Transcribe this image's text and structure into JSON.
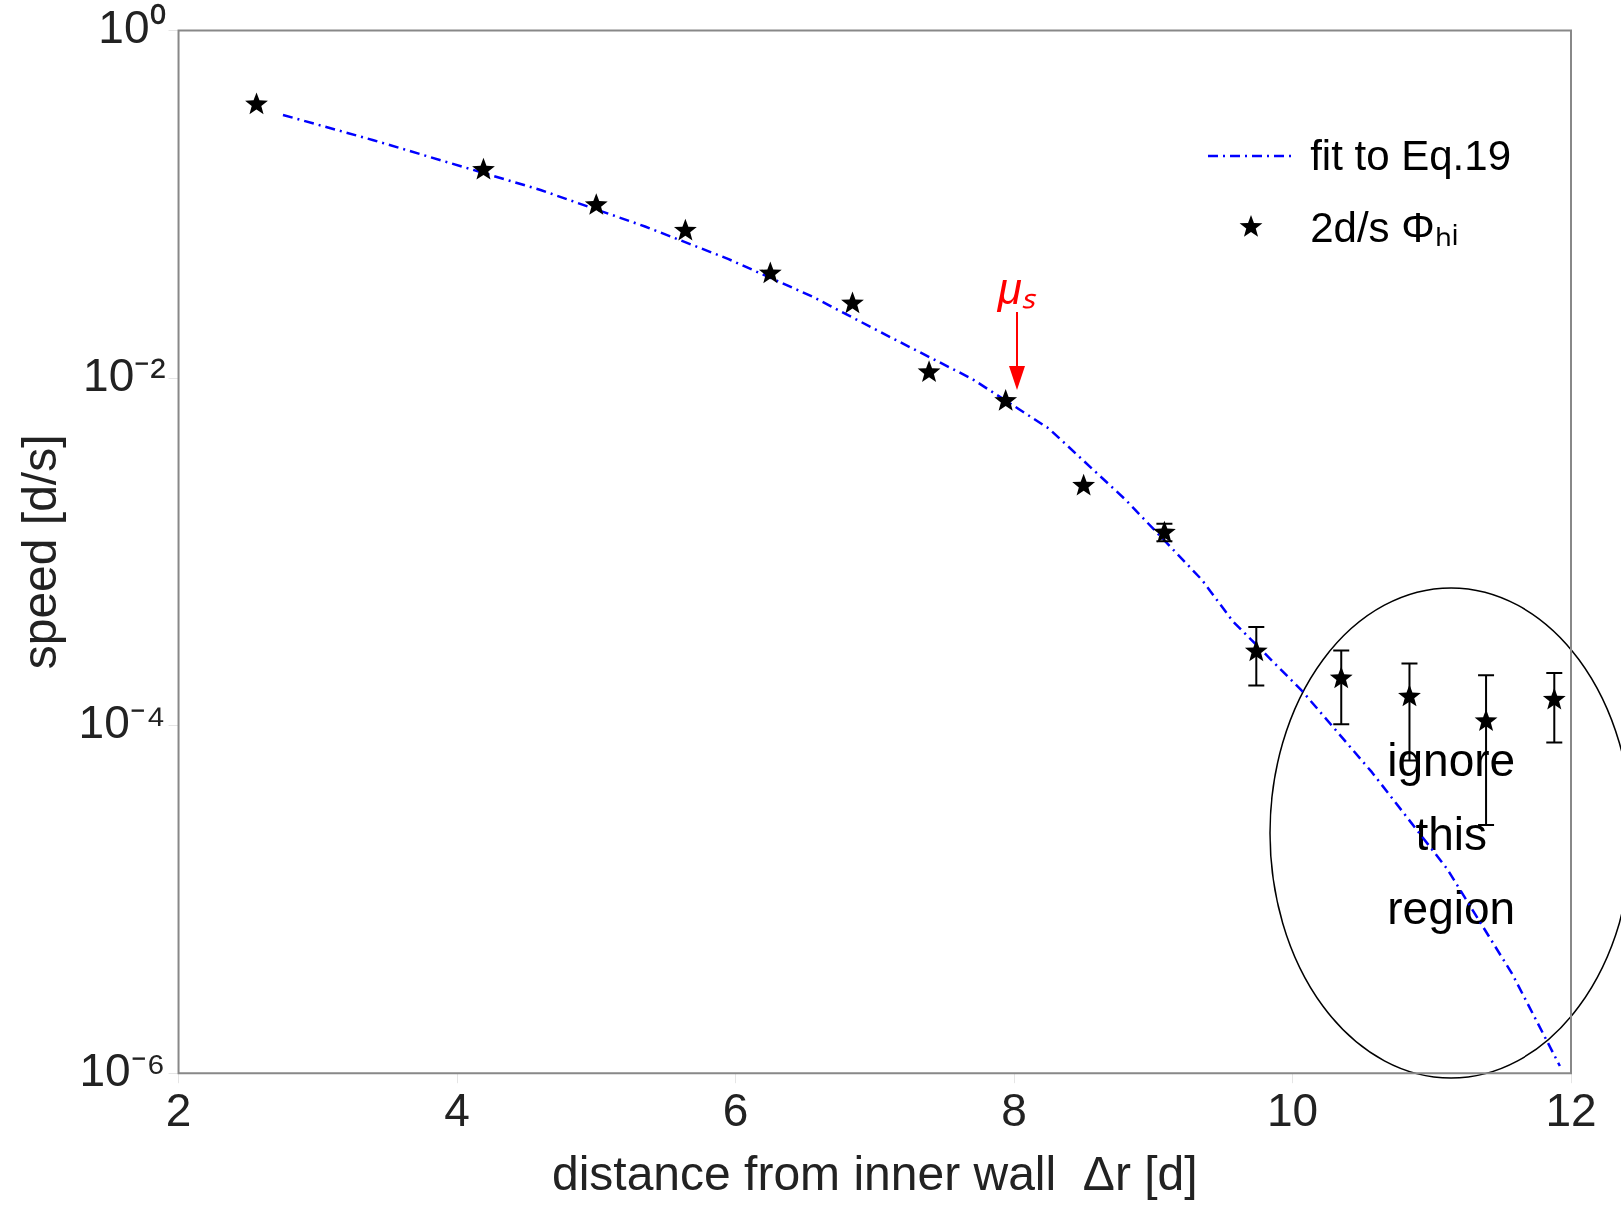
{
  "chart_data": {
    "type": "scatter",
    "xlabel": "distance from inner wall  Δr [d]",
    "ylabel": "speed [d/s]",
    "log": "y",
    "xlim": [
      2,
      12
    ],
    "xticks": [
      2,
      4,
      6,
      8,
      10,
      12
    ],
    "ylim": [
      1e-06,
      1
    ],
    "yticks": [
      {
        "value": 1,
        "label": "10⁰"
      },
      {
        "value": 0.01,
        "label": "10⁻²"
      },
      {
        "value": 0.0001,
        "label": "10⁻⁴"
      },
      {
        "value": 1e-06,
        "label": "10⁻⁶"
      }
    ],
    "grid": false,
    "legend": "top right",
    "series": [
      {
        "name": "fit to Eq.19",
        "type": "line",
        "color": "#0000ff",
        "line_style": "dashed",
        "marker": "none",
        "x": [
          2.75,
          3.4,
          4.6,
          5.35,
          5.95,
          6.55,
          7.1,
          7.7,
          8.25,
          8.8,
          9.35,
          9.57,
          10.07,
          10.57,
          11.11,
          11.58,
          11.92
        ],
        "values": [
          0.327,
          0.234,
          0.121,
          0.0746,
          0.0484,
          0.0295,
          0.0174,
          0.00989,
          0.00513,
          0.002,
          0.00069,
          0.0004,
          0.000158,
          5.4e-05,
          1.5e-05,
          3.7e-06,
          1.1e-06
        ]
      },
      {
        "name": "2d/s Φₕᵢ",
        "type": "scatter",
        "color": "#000000",
        "marker": "star",
        "x": [
          2.56,
          4.19,
          5.0,
          5.64,
          6.25,
          6.84,
          7.39,
          7.94,
          8.5,
          9.08,
          9.74,
          10.35,
          10.84,
          11.39,
          11.88
        ],
        "values": [
          0.376,
          0.158,
          0.099,
          0.0705,
          0.04,
          0.0269,
          0.0108,
          0.00738,
          0.0024,
          0.00129,
          0.000267,
          0.000187,
          0.000147,
          0.000106,
          0.000141
        ],
        "errors": [
          null,
          null,
          null,
          null,
          null,
          null,
          null,
          null,
          null,
          [
            0.00115,
            0.00145
          ],
          [
            0.00017,
            0.00037
          ],
          [
            0.000102,
            0.000271
          ],
          [
            6.3e-05,
            0.000228
          ],
          [
            2.68e-05,
            0.000195
          ],
          [
            8e-05,
            0.000201
          ]
        ]
      }
    ],
    "annotations": [
      {
        "text": "μₛ",
        "x": 8.02,
        "y": 0.0075
      },
      "ignore this region"
    ]
  }
}
